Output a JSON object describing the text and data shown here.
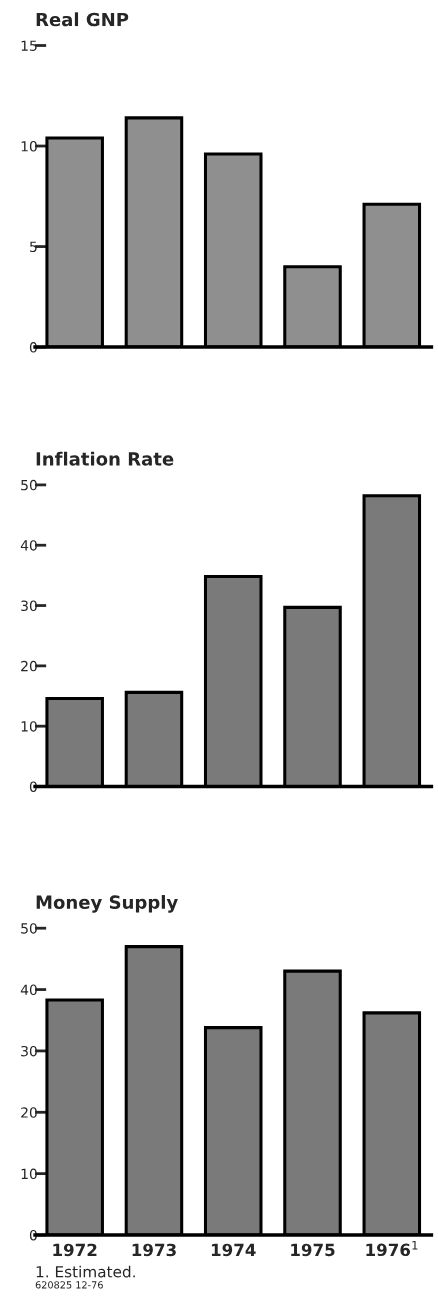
{
  "chart_data": [
    {
      "type": "bar",
      "title": "Real GNP",
      "categories": [
        null,
        null,
        null,
        null,
        null
      ],
      "values": [
        10.4,
        11.4,
        9.6,
        4.0,
        7.1
      ],
      "color": "#8f8f8f",
      "ylim": [
        0,
        15
      ],
      "yticks": [
        0,
        5,
        10,
        15
      ],
      "tick_labels": "y",
      "grid": false,
      "legend": false
    },
    {
      "type": "bar",
      "title": "Inflation Rate",
      "categories": [
        null,
        null,
        null,
        null,
        null
      ],
      "values": [
        14.6,
        15.6,
        34.8,
        29.7,
        48.2
      ],
      "color": "#7a7a7a",
      "ylim": [
        0,
        50
      ],
      "yticks": [
        0,
        10,
        20,
        30,
        40,
        50
      ],
      "tick_labels": "y",
      "grid": false,
      "legend": false
    },
    {
      "type": "bar",
      "title": "Money Supply",
      "categories": [
        "1972",
        "1973",
        "1974",
        "1975",
        "1976$^{1}$"
      ],
      "values": [
        38.3,
        47.0,
        33.8,
        43.0,
        36.2
      ],
      "color": "#7a7a7a",
      "ylim": [
        0,
        50
      ],
      "yticks": [
        0,
        10,
        20,
        30,
        40,
        50
      ],
      "grid": false,
      "legend": false,
      "annotations": [
        "1. Estimated.",
        "620825 12-76"
      ]
    }
  ]
}
